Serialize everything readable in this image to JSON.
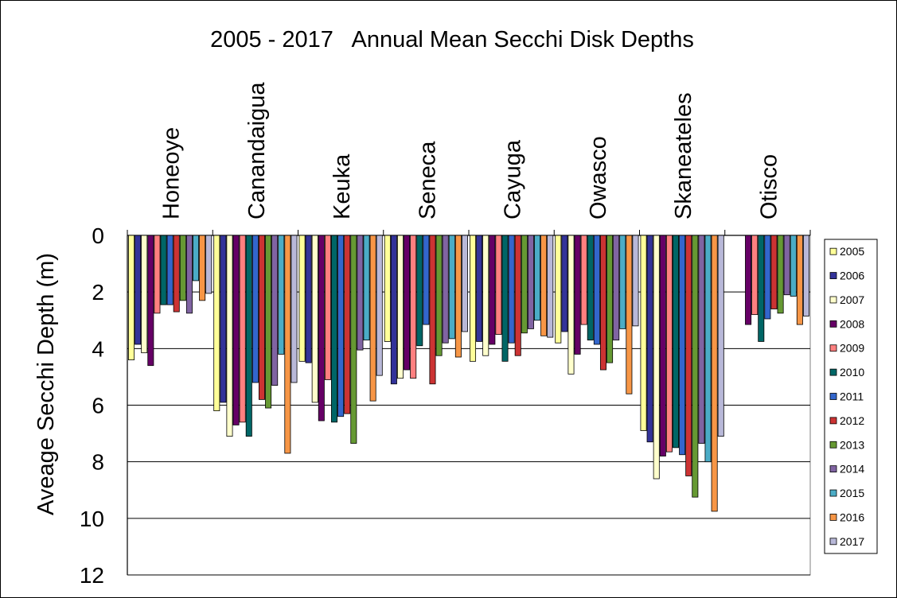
{
  "chart_data": {
    "type": "bar",
    "title": "2005 - 2017   Annual Mean Secchi Disk Depths",
    "xlabel": "",
    "ylabel": "Aveage Secchi Depth (m)",
    "ylim": [
      0,
      12
    ],
    "y_inverted": true,
    "y_ticks": [
      "0",
      "2",
      "4",
      "6",
      "8",
      "10",
      "12"
    ],
    "x_axis_position": "top",
    "grid": true,
    "legend_position": "right",
    "categories": [
      "Honeoye",
      "Canandaigua",
      "Keuka",
      "Seneca",
      "Cayuga",
      "Owasco",
      "Skaneateles",
      "Otisco"
    ],
    "series": [
      {
        "name": "2005",
        "color": "#FFFF99",
        "values": [
          4.4,
          6.2,
          4.45,
          3.75,
          4.45,
          3.8,
          6.9,
          null
        ]
      },
      {
        "name": "2006",
        "color": "#333399",
        "values": [
          3.85,
          5.9,
          4.5,
          5.25,
          3.75,
          3.4,
          7.3,
          null
        ]
      },
      {
        "name": "2007",
        "color": "#FFFFCC",
        "values": [
          4.15,
          7.1,
          5.9,
          5.05,
          4.25,
          4.9,
          8.6,
          null
        ]
      },
      {
        "name": "2008",
        "color": "#660066",
        "values": [
          4.6,
          6.7,
          6.55,
          4.75,
          3.85,
          4.2,
          7.8,
          3.15
        ]
      },
      {
        "name": "2009",
        "color": "#FF8080",
        "values": [
          2.75,
          6.6,
          5.1,
          5.05,
          3.5,
          3.15,
          7.65,
          2.8
        ]
      },
      {
        "name": "2010",
        "color": "#006666",
        "values": [
          2.45,
          7.1,
          6.6,
          3.9,
          4.45,
          3.7,
          7.5,
          3.75
        ]
      },
      {
        "name": "2011",
        "color": "#3366CC",
        "values": [
          2.45,
          5.2,
          6.4,
          3.15,
          3.8,
          3.85,
          7.75,
          2.95
        ]
      },
      {
        "name": "2012",
        "color": "#CC3333",
        "values": [
          2.7,
          5.8,
          6.3,
          5.25,
          4.25,
          4.75,
          8.5,
          2.6
        ]
      },
      {
        "name": "2013",
        "color": "#669933",
        "values": [
          2.3,
          6.1,
          7.35,
          4.25,
          3.45,
          4.5,
          9.25,
          2.75
        ]
      },
      {
        "name": "2014",
        "color": "#8064A2",
        "values": [
          2.75,
          5.3,
          4.05,
          3.8,
          3.3,
          3.7,
          7.35,
          2.1
        ]
      },
      {
        "name": "2015",
        "color": "#4BACC6",
        "values": [
          1.6,
          4.2,
          3.7,
          3.65,
          3.0,
          3.3,
          8.0,
          2.15
        ]
      },
      {
        "name": "2016",
        "color": "#F79646",
        "values": [
          2.3,
          7.7,
          5.85,
          4.3,
          3.55,
          5.6,
          9.75,
          3.15
        ]
      },
      {
        "name": "2017",
        "color": "#B8B8D8",
        "values": [
          2.05,
          5.2,
          4.95,
          3.4,
          3.6,
          3.2,
          7.1,
          2.85
        ]
      }
    ]
  }
}
